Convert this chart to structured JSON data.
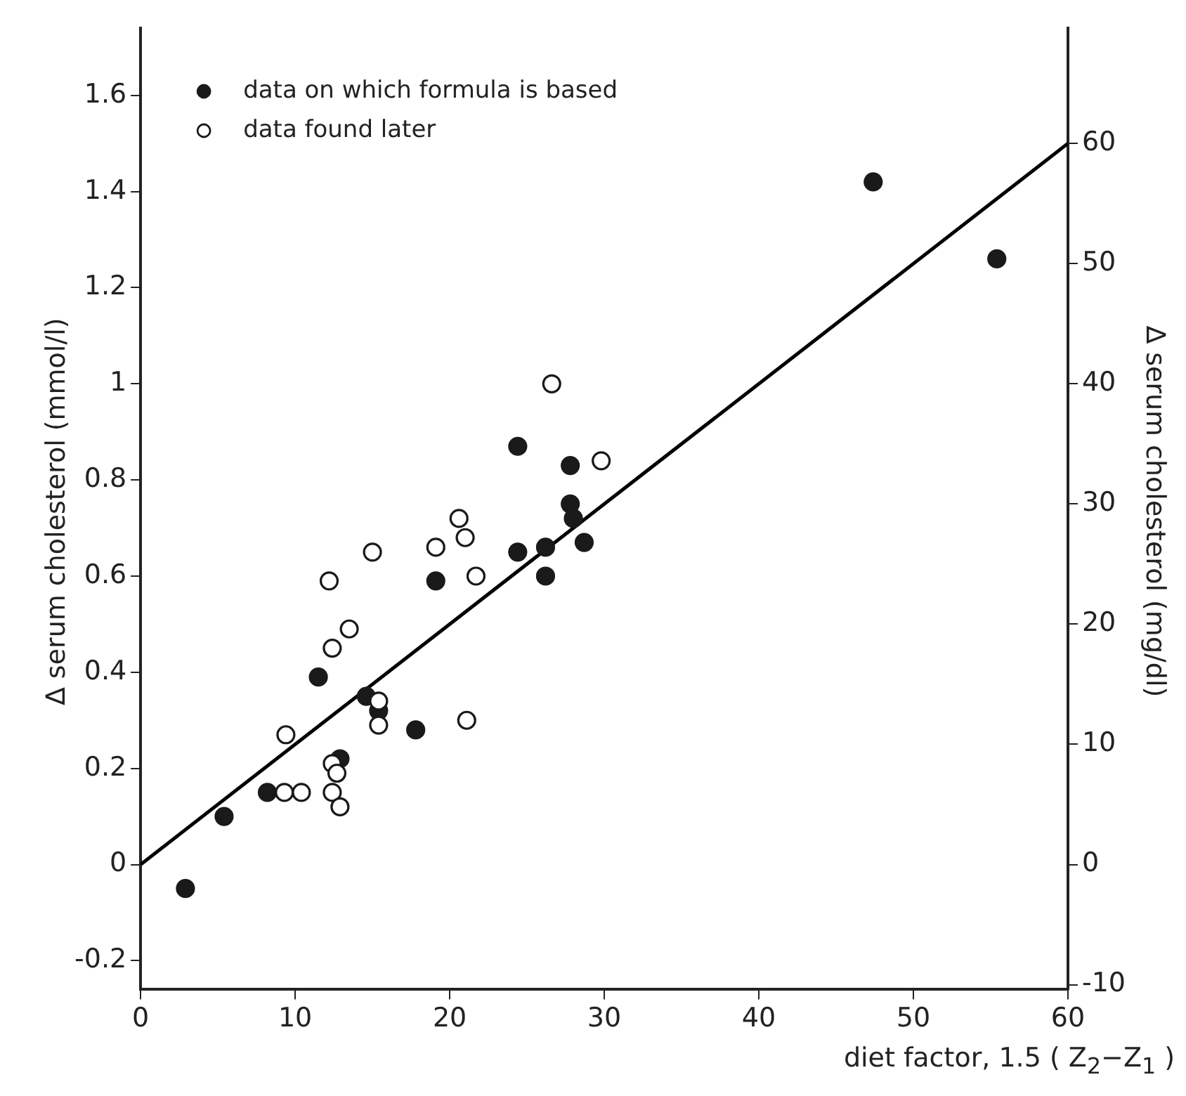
{
  "chart_data": {
    "type": "scatter",
    "xlabel": "diet factor, 1.5 ( Z$_{2}$−Z$_{1}$ )",
    "ylabel": "∆ serum cholesterol (mmol/l)",
    "y2label": "∆ serum cholesterol (mg/dl)",
    "xlim": [
      0,
      60
    ],
    "xticks": [
      0,
      10,
      20,
      30,
      40,
      50,
      60
    ],
    "ylim": [
      -0.26,
      1.74
    ],
    "yticks": [
      -0.2,
      0,
      0.2,
      0.4,
      0.6,
      0.8,
      1.0,
      1.2,
      1.4,
      1.6
    ],
    "y2lim": [
      -10.4,
      69.6
    ],
    "y2ticks": [
      -10,
      0,
      10,
      20,
      30,
      40,
      50,
      60
    ],
    "grid": false,
    "legend": "top left",
    "marker": "circle",
    "series": [
      {
        "name": "data on which formula is based",
        "color": "#1a1a1a",
        "x": [
          2.9,
          5.4,
          8.2,
          11.5,
          12.9,
          14.6,
          15.4,
          17.8,
          19.1,
          24.4,
          27.8,
          27.8,
          28.0,
          24.4,
          26.2,
          26.2,
          28.7,
          47.4,
          55.4
        ],
        "values": [
          -0.05,
          0.1,
          0.15,
          0.39,
          0.22,
          0.35,
          0.32,
          0.28,
          0.59,
          0.87,
          0.83,
          0.75,
          0.72,
          0.65,
          0.66,
          0.6,
          0.67,
          1.42,
          1.26
        ]
      },
      {
        "name": "data found later",
        "color": "#ffffff",
        "x": [
          9.4,
          9.3,
          10.4,
          12.2,
          12.4,
          13.5,
          15.0,
          12.4,
          12.7,
          12.4,
          12.9,
          15.4,
          15.4,
          21.1,
          19.1,
          21.0,
          21.7,
          26.6,
          20.6,
          29.8
        ],
        "values": [
          0.27,
          0.15,
          0.15,
          0.59,
          0.45,
          0.49,
          0.65,
          0.21,
          0.19,
          0.15,
          0.12,
          0.34,
          0.29,
          0.3,
          0.66,
          0.68,
          0.6,
          1.0,
          0.72,
          0.84
        ]
      },
      {
        "type": "line",
        "color": "#000000",
        "marker": "none",
        "x": [
          0,
          60
        ],
        "values": [
          0,
          1.5
        ]
      }
    ]
  }
}
